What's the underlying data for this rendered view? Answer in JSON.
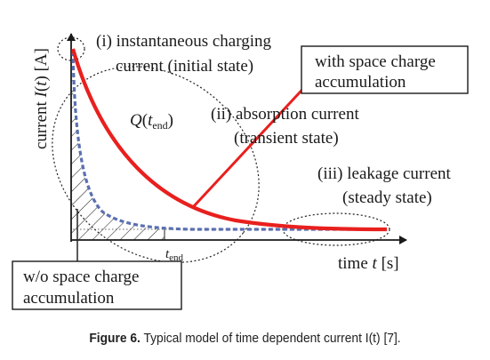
{
  "axes": {
    "x_label_pre": "time ",
    "x_label_var": "t",
    "x_label_unit": " [s]",
    "y_label_pre": "current ",
    "y_label_var": "I",
    "y_label_mid": "(",
    "y_label_var2": "t",
    "y_label_post": ") [A]"
  },
  "labels": {
    "region1_line1": "(i) instantaneous charging",
    "region1_line2": "current (initial state)",
    "region2_line1": "(ii) absorption current",
    "region2_line2": "(transient state)",
    "region3_line1": "(iii) leakage current",
    "region3_line2": "(steady state)",
    "with_sc_line1": "with space charge",
    "with_sc_line2": "accumulation",
    "wo_sc_line1": "w/o space charge",
    "wo_sc_line2": "accumulation",
    "q_symbol": "Q",
    "q_paren_open": "(",
    "q_sub_t": "t",
    "q_sub": "end",
    "q_paren_close": ")",
    "tend_t": "t",
    "tend_sub": "end"
  },
  "caption": {
    "label": "Figure 6.",
    "text": " Typical model of time dependent current I(t) [7]."
  },
  "colors": {
    "with_space_charge_curve": "#e8201e",
    "without_space_charge_curve": "#5a6fb0",
    "axes": "#1a1a1a"
  }
}
